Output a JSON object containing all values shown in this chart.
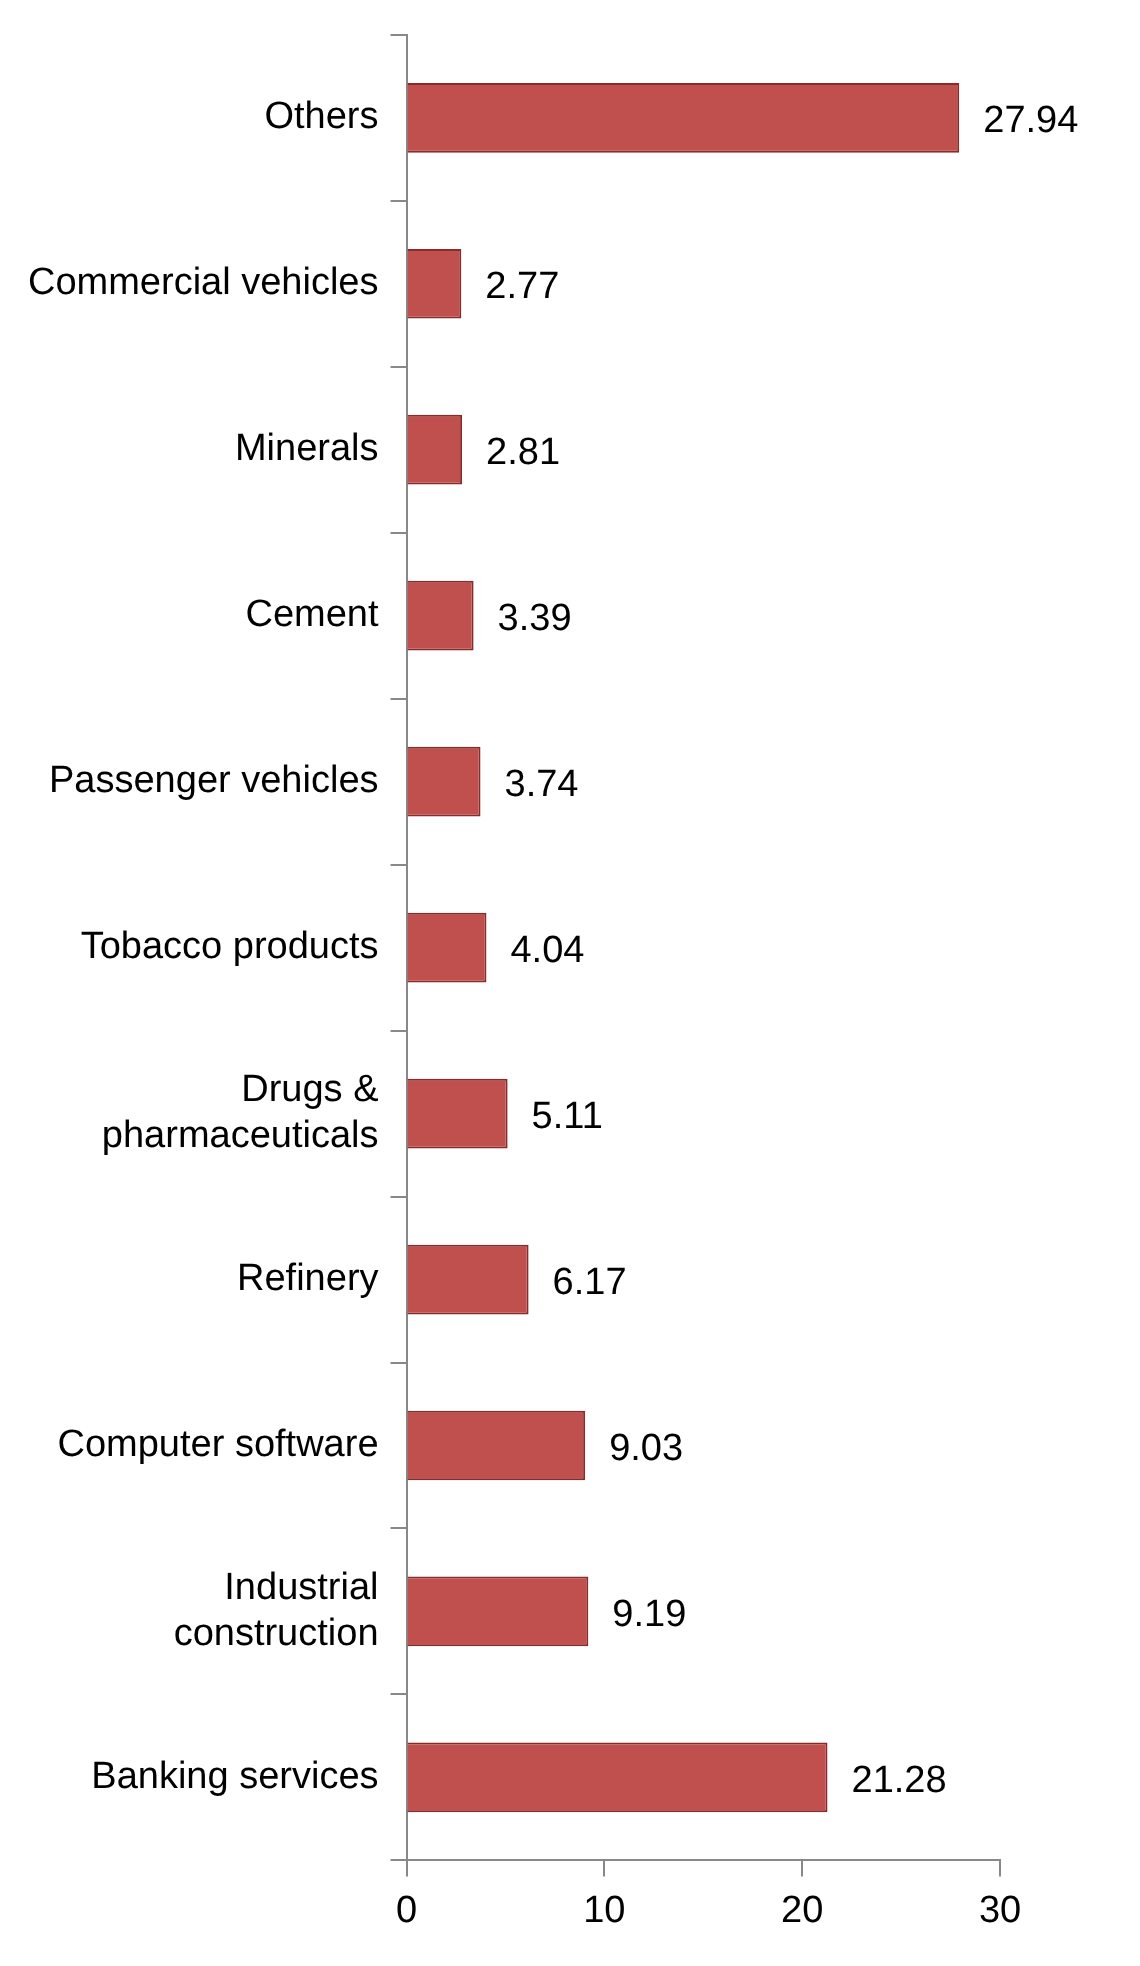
{
  "chart_data": {
    "type": "bar",
    "orientation": "horizontal",
    "categories": [
      "Others",
      "Commercial vehicles",
      "Minerals",
      "Cement",
      "Passenger vehicles",
      "Tobacco products",
      "Drugs & pharmaceuticals",
      "Refinery",
      "Computer software",
      "Industrial construction",
      "Banking services"
    ],
    "values": [
      27.94,
      2.77,
      2.81,
      3.39,
      3.74,
      4.04,
      5.11,
      6.17,
      9.03,
      9.19,
      21.28
    ],
    "color": "#c0504d",
    "xlim": [
      0,
      30
    ],
    "xticks": [
      0,
      10,
      20,
      30
    ],
    "data_labels": true,
    "grid": false,
    "legend": false
  }
}
